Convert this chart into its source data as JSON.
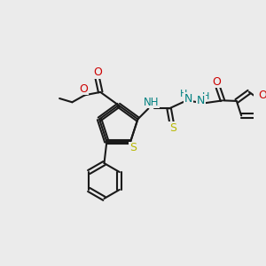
{
  "bg_color": "#ebebeb",
  "bond_color": "#1a1a1a",
  "S_color": "#b8b800",
  "O_color": "#cc0000",
  "N_color": "#0000cc",
  "NH_color": "#008080",
  "figsize": [
    3.0,
    3.0
  ],
  "dpi": 100,
  "xlim": [
    0,
    10
  ],
  "ylim": [
    0,
    10
  ]
}
